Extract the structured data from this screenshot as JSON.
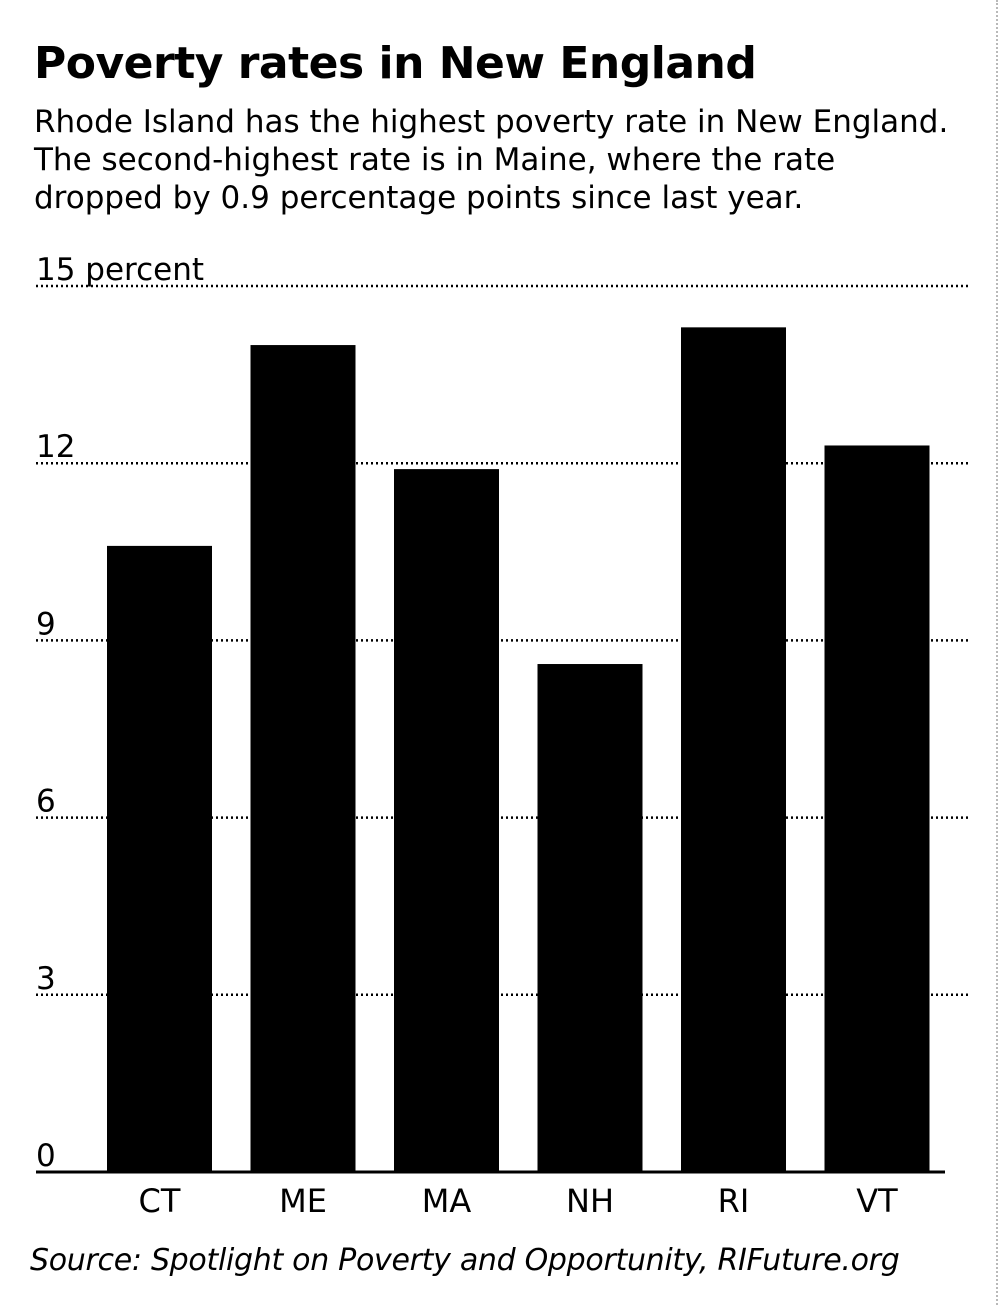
{
  "header": {
    "title": "Poverty rates in New England",
    "subtitle": "Rhode Island has the highest poverty rate in New England. The second-highest rate is in Maine, where the rate dropped by 0.9 percentage points since last year."
  },
  "source": "Source: Spotlight on Poverty and Opportunity, RIFuture.org",
  "colors": {
    "bar": "#000000",
    "grid": "#000000",
    "background": "#ffffff"
  },
  "chart_data": {
    "type": "bar",
    "title": "Poverty rates in New England",
    "categories": [
      "CT",
      "ME",
      "MA",
      "NH",
      "RI",
      "VT"
    ],
    "values": [
      10.6,
      14.0,
      11.9,
      8.6,
      14.3,
      12.3
    ],
    "ylim": [
      0,
      15
    ],
    "yticks": [
      0,
      3,
      6,
      9,
      12,
      15
    ],
    "ytick_labels": [
      "0",
      "3",
      "6",
      "9",
      "12",
      "15 percent"
    ],
    "grid": true,
    "grid_style": "dotted"
  }
}
